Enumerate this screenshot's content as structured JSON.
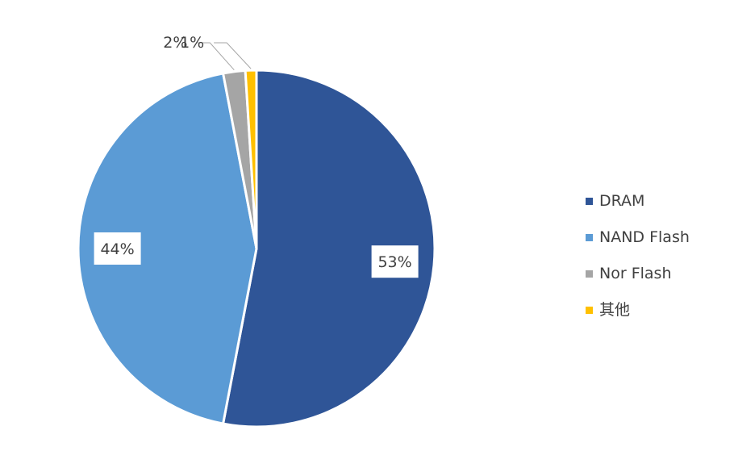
{
  "chart_data": {
    "type": "pie",
    "title": "",
    "slices": [
      {
        "label": "DRAM",
        "value": 53,
        "display": "53%",
        "color": "#2F5597"
      },
      {
        "label": "NAND Flash",
        "value": 44,
        "display": "44%",
        "color": "#5B9BD5"
      },
      {
        "label": "Nor Flash",
        "value": 2,
        "display": "2%",
        "color": "#A5A5A5"
      },
      {
        "label": "其他",
        "value": 1,
        "display": "1%",
        "color": "#FFC000"
      }
    ],
    "legend_position": "right"
  }
}
